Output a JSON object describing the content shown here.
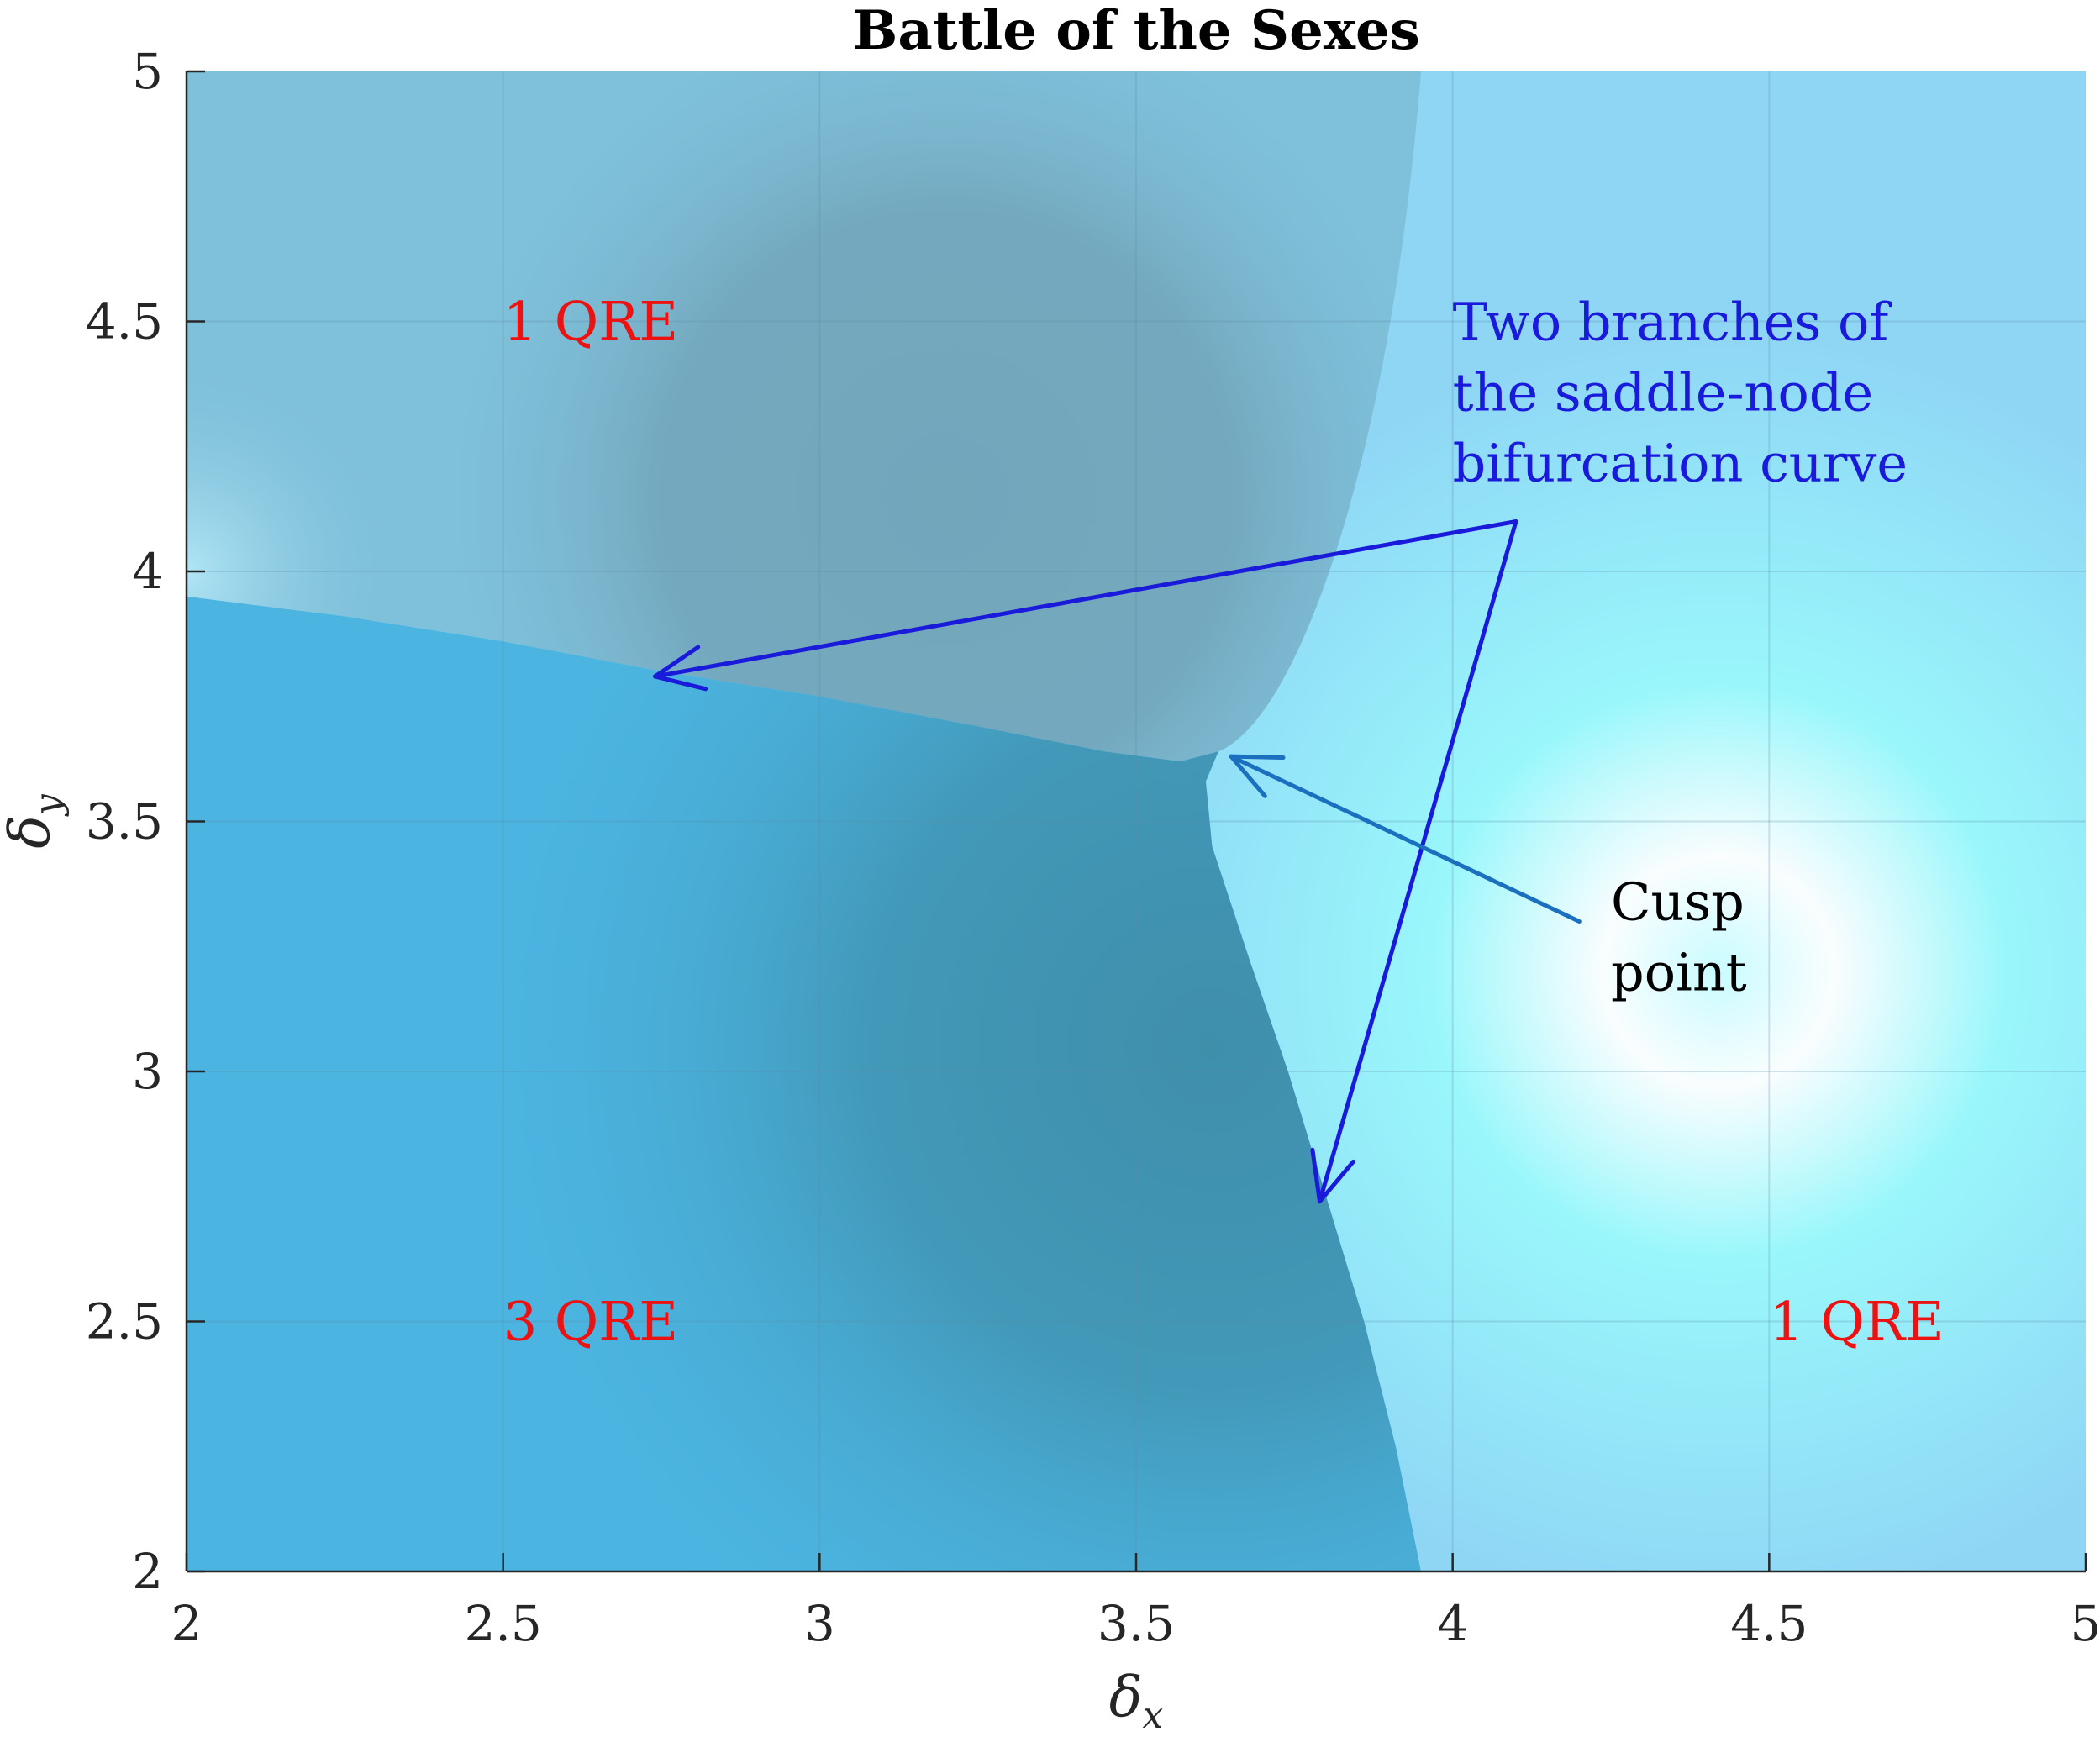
{
  "chart_data": {
    "type": "heatmap",
    "title": "Battle of the Sexes",
    "xlabel": {
      "symbol": "δ",
      "subscript": "x"
    },
    "ylabel": {
      "symbol": "δ",
      "subscript": "y"
    },
    "xlim": [
      2,
      5
    ],
    "ylim": [
      2,
      5
    ],
    "x_ticks": [
      2,
      2.5,
      3,
      3.5,
      4,
      4.5,
      5
    ],
    "y_ticks": [
      2,
      2.5,
      3,
      3.5,
      4,
      4.5,
      5
    ],
    "x_tick_labels": [
      "2",
      "2.5",
      "3",
      "3.5",
      "4",
      "4.5",
      "5"
    ],
    "y_tick_labels": [
      "2",
      "2.5",
      "3",
      "3.5",
      "4",
      "4.5",
      "5"
    ],
    "grid": true,
    "bifurcation_curve": {
      "upper_branch": [
        [
          2.0,
          3.95
        ],
        [
          2.25,
          3.91
        ],
        [
          2.5,
          3.86
        ],
        [
          2.75,
          3.8
        ],
        [
          3.0,
          3.75
        ],
        [
          3.25,
          3.69
        ],
        [
          3.45,
          3.64
        ],
        [
          3.57,
          3.62
        ],
        [
          3.63,
          3.64
        ]
      ],
      "lower_branch": [
        [
          3.63,
          3.64
        ],
        [
          3.61,
          3.58
        ],
        [
          3.62,
          3.45
        ],
        [
          3.68,
          3.22
        ],
        [
          3.74,
          3.0
        ],
        [
          3.8,
          2.75
        ],
        [
          3.86,
          2.5
        ],
        [
          3.91,
          2.25
        ],
        [
          3.95,
          2.0
        ]
      ]
    },
    "cusp_point": [
      3.63,
      3.64
    ],
    "regions": [
      {
        "label": "1 QRE",
        "x": 2.5,
        "y": 4.5,
        "color": "#ee1111"
      },
      {
        "label": "3 QRE",
        "x": 2.5,
        "y": 2.5,
        "color": "#ee1111"
      },
      {
        "label": "1 QRE",
        "x": 4.5,
        "y": 2.5,
        "color": "#ee1111"
      }
    ],
    "annotations": [
      {
        "lines": [
          "Two branches of",
          "the saddle-node",
          "bifurcation curve"
        ],
        "text_x": 4.0,
        "text_y": 4.5,
        "color": "#1a1adb",
        "origin": [
          4.1,
          4.1
        ],
        "targets": [
          [
            2.74,
            3.79
          ],
          [
            3.79,
            2.74
          ]
        ]
      },
      {
        "lines": [
          "Cusp",
          "point"
        ],
        "text_x": 4.25,
        "text_y": 3.34,
        "color": "#000000",
        "arrow_color": "#1a6fbf",
        "origin": [
          4.2,
          3.3
        ],
        "targets": [
          [
            3.65,
            3.63
          ]
        ]
      }
    ],
    "colors": {
      "three_qre_region": "#4bb4e0",
      "three_qre_dark": "#3f8fab",
      "upper_one_qre": "#7fc0da",
      "upper_dark": "#72a6bb",
      "right_one_qre": "#8fd6f5",
      "right_glow": "#c8fcff",
      "cyan": "#99f7fb",
      "grid": "#5a8ca8",
      "axis": "#262626"
    }
  }
}
